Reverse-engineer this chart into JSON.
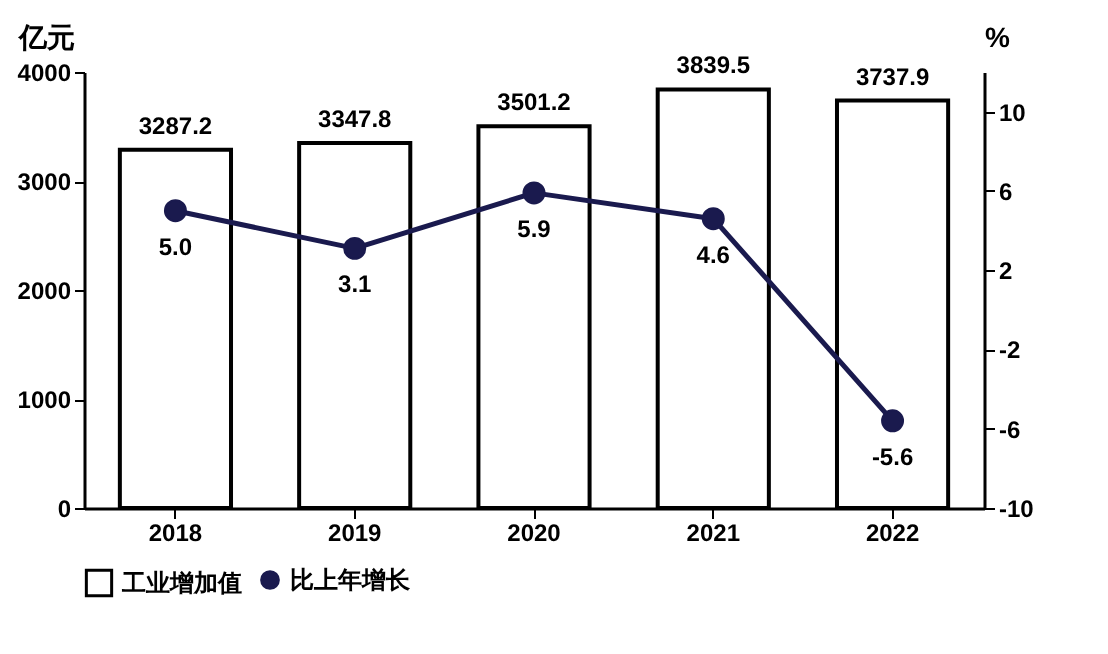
{
  "chart_data": {
    "type": "bar",
    "categories": [
      "2018",
      "2019",
      "2020",
      "2021",
      "2022"
    ],
    "ylabel": "亿元",
    "y2label": "%",
    "ylim": [
      0,
      4000
    ],
    "yticks": [
      0,
      1000,
      2000,
      3000,
      4000
    ],
    "y2lim": [
      -10,
      12
    ],
    "y2ticks": [
      -10,
      -6,
      -2,
      2,
      6,
      10
    ],
    "series": [
      {
        "name": "工业增加值",
        "color": "#ffffff",
        "values": [
          3287.2,
          3347.8,
          3501.2,
          3839.5,
          3737.9
        ],
        "value_labels": [
          "3287.2",
          "3347.8",
          "3501.2",
          "3839.5",
          "3737.9"
        ]
      },
      {
        "name": "比上年增长",
        "type": "line",
        "axis": "y2",
        "color": "#1a1a4e",
        "values": [
          5.0,
          3.1,
          5.9,
          4.6,
          -5.6
        ],
        "value_labels": [
          "5.0",
          "3.1",
          "5.9",
          "4.6",
          "-5.6"
        ]
      }
    ],
    "legend": "bottom",
    "grid": false,
    "marker": "circle",
    "line_style": "solid"
  }
}
